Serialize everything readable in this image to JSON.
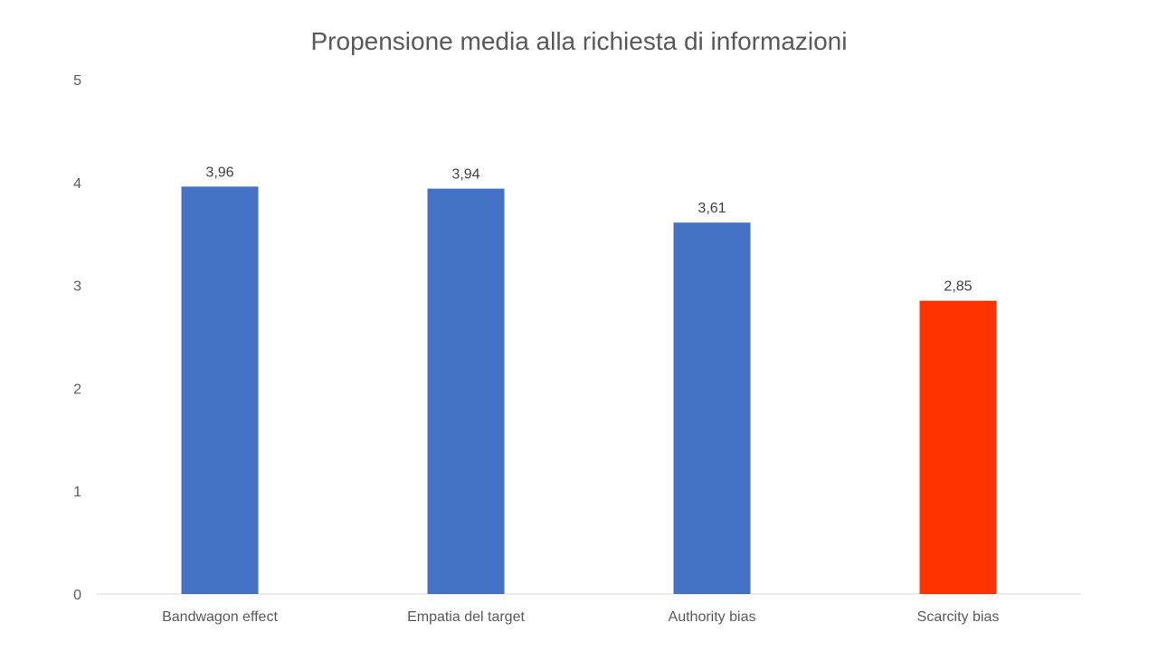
{
  "chart_data": {
    "type": "bar",
    "title": "Propensione media alla richiesta di informazioni",
    "categories": [
      "Bandwagon effect",
      "Empatia del target",
      "Authority bias",
      "Scarcity bias"
    ],
    "values": [
      3.96,
      3.94,
      3.61,
      2.85
    ],
    "data_labels": [
      "3,96",
      "3,94",
      "3,61",
      "2,85"
    ],
    "bar_colors": [
      "#4472C4",
      "#4472C4",
      "#4472C4",
      "#FF3300"
    ],
    "ylim": [
      0,
      5
    ],
    "yticks": [
      0,
      1,
      2,
      3,
      4,
      5
    ],
    "xlabel": "",
    "ylabel": "",
    "grid": false,
    "legend": "none"
  }
}
